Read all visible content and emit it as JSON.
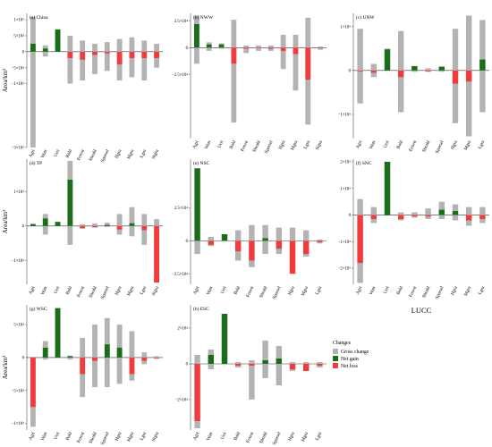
{
  "colors": {
    "gross": "#b3b3b3",
    "gain": "#1a6e1a",
    "loss": "#f03c3c",
    "axis": "#555555",
    "zero": "#333333"
  },
  "legend": {
    "title": "Changes",
    "items": [
      {
        "label": "Gross change",
        "key": "gross"
      },
      {
        "label": "Net gain",
        "key": "gain"
      },
      {
        "label": "Net loss",
        "key": "loss"
      }
    ]
  },
  "chart_data": [
    {
      "id": "a",
      "type": "bar",
      "title": "(a) China",
      "ylabel": "Area/km²",
      "xlabel": "",
      "ylim": [
        -300000,
        120000
      ],
      "yticks": [
        {
          "v": 100000,
          "t": "1×10⁵"
        },
        {
          "v": 50000,
          "t": "5×10⁴"
        },
        {
          "v": 0,
          "t": "0"
        },
        {
          "v": -50000,
          "t": "−5×10⁴"
        },
        {
          "v": -100000,
          "t": "−1×10⁵"
        },
        {
          "v": -300000,
          "t": "−3×10⁵"
        }
      ],
      "categories": [
        "Agri",
        "Watr",
        "Urri",
        "Bald",
        "Forest",
        "Shrubl",
        "Sparsel",
        "Hgra",
        "Mgra",
        "Lgra",
        "Stgra"
      ],
      "series": [
        {
          "name": "Gross change",
          "values": [
            [
              -300000,
              110000
            ],
            [
              -15000,
              20000
            ],
            [
              0,
              70000
            ],
            [
              -100000,
              50000
            ],
            [
              -90000,
              35000
            ],
            [
              -70000,
              25000
            ],
            [
              -60000,
              30000
            ],
            [
              -90000,
              40000
            ],
            [
              -80000,
              45000
            ],
            [
              -90000,
              35000
            ],
            [
              -50000,
              25000
            ]
          ]
        },
        {
          "name": "Net",
          "values": [
            25000,
            10000,
            70000,
            -20000,
            -25000,
            -10000,
            -5000,
            -40000,
            -20000,
            -20000,
            -20000
          ]
        }
      ]
    },
    {
      "id": "b",
      "type": "bar",
      "title": "(b) NWW",
      "ylabel": "",
      "xlabel": "",
      "ylim": [
        -85000,
        32000
      ],
      "yticks": [
        {
          "v": 25000,
          "t": "2.5×10⁴"
        },
        {
          "v": 0,
          "t": "0"
        },
        {
          "v": -25000,
          "t": "−2.5×10⁴"
        }
      ],
      "categories": [
        "Agri",
        "Watr",
        "Urri",
        "Bald",
        "Forest",
        "Shrubl",
        "Sparsel",
        "Hgra",
        "Mgra",
        "Lgra",
        "Stgra"
      ],
      "series": [
        {
          "name": "Gross change",
          "values": [
            [
              -15000,
              30000
            ],
            [
              -3000,
              5000
            ],
            [
              -1000,
              4000
            ],
            [
              -70000,
              26000
            ],
            [
              -5000,
              2000
            ],
            [
              -3000,
              2000
            ],
            [
              -3000,
              2000
            ],
            [
              -20000,
              12000
            ],
            [
              -40000,
              12000
            ],
            [
              -72000,
              28000
            ],
            [
              -2000,
              1000
            ]
          ]
        },
        {
          "name": "Net",
          "values": [
            22000,
            3000,
            3000,
            -15000,
            -1000,
            -500,
            -1000,
            -3000,
            -6000,
            -30000,
            -500
          ]
        }
      ]
    },
    {
      "id": "c",
      "type": "bar",
      "title": "(c) UNW",
      "ylabel": "",
      "xlabel": "",
      "ylim": [
        -155000,
        130000
      ],
      "yticks": [
        {
          "v": 100000,
          "t": "1×10⁵"
        },
        {
          "v": 0,
          "t": "0"
        },
        {
          "v": -100000,
          "t": "−1×10⁵"
        }
      ],
      "categories": [
        "Agri",
        "Watr",
        "Urri",
        "Bald",
        "Forest",
        "Shrubl",
        "Sparsel",
        "Hgra",
        "Mgra",
        "Lgra"
      ],
      "series": [
        {
          "name": "Gross change",
          "values": [
            [
              -75000,
              95000
            ],
            [
              -15000,
              15000
            ],
            [
              0,
              50000
            ],
            [
              -95000,
              90000
            ],
            [
              -3000,
              10000
            ],
            [
              -3000,
              5000
            ],
            [
              -3000,
              10000
            ],
            [
              -120000,
              95000
            ],
            [
              -150000,
              125000
            ],
            [
              -95000,
              115000
            ]
          ]
        },
        {
          "name": "Net",
          "values": [
            -2000,
            -5000,
            48000,
            -15000,
            10000,
            -2000,
            8000,
            -30000,
            -25000,
            25000
          ]
        }
      ]
    },
    {
      "id": "d",
      "type": "bar",
      "title": "(d) TP",
      "ylabel": "Area/km²",
      "xlabel": "",
      "ylim": [
        -170000,
        195000
      ],
      "yticks": [
        {
          "v": 100000,
          "t": "1×10⁵"
        },
        {
          "v": 0,
          "t": "0"
        },
        {
          "v": -100000,
          "t": "−1×10⁵"
        }
      ],
      "categories": [
        "Agri",
        "Watr",
        "Urri",
        "Bald",
        "Forest",
        "Shrubl",
        "Sparsel",
        "Hgra",
        "Mgra",
        "Lgra",
        "Stgra"
      ],
      "series": [
        {
          "name": "Gross change",
          "values": [
            [
              0,
              7000
            ],
            [
              -25000,
              35000
            ],
            [
              0,
              12000
            ],
            [
              -55000,
              190000
            ],
            [
              -8000,
              5000
            ],
            [
              -5000,
              7000
            ],
            [
              -3000,
              10000
            ],
            [
              -25000,
              35000
            ],
            [
              -30000,
              55000
            ],
            [
              -55000,
              35000
            ],
            [
              -165000,
              20000
            ]
          ]
        },
        {
          "name": "Net",
          "values": [
            5000,
            22000,
            12000,
            135000,
            -6000,
            -3000,
            3000,
            -10000,
            8000,
            -12000,
            -165000
          ]
        }
      ]
    },
    {
      "id": "e",
      "type": "bar",
      "title": "(e) NSC",
      "ylabel": "",
      "xlabel": "",
      "ylim": [
        -33000,
        62000
      ],
      "yticks": [
        {
          "v": 25000,
          "t": "2.5×10⁴"
        },
        {
          "v": 0,
          "t": "0"
        },
        {
          "v": -25000,
          "t": "−2.5×10⁴"
        }
      ],
      "categories": [
        "Agri",
        "Watr",
        "Urri",
        "Bald",
        "Forest",
        "Shrubl",
        "Sparsel",
        "Hgra",
        "Mgra",
        "Lgra"
      ],
      "series": [
        {
          "name": "Gross change",
          "values": [
            [
              -10000,
              55000
            ],
            [
              -4000,
              3000
            ],
            [
              0,
              5000
            ],
            [
              -15000,
              8000
            ],
            [
              -20000,
              12000
            ],
            [
              -10000,
              12000
            ],
            [
              -10000,
              10000
            ],
            [
              -25000,
              10000
            ],
            [
              -12000,
              8000
            ],
            [
              -2000,
              1000
            ]
          ]
        },
        {
          "name": "Net",
          "values": [
            55000,
            -3000,
            5000,
            -8000,
            -15000,
            2000,
            -6000,
            -25000,
            -10000,
            -1000
          ]
        }
      ]
    },
    {
      "id": "f",
      "type": "bar",
      "title": "(f) SNC",
      "ylabel": "",
      "xlabel": "LUCC",
      "ylim": [
        -260000,
        210000
      ],
      "yticks": [
        {
          "v": 200000,
          "t": "2×10⁵"
        },
        {
          "v": 100000,
          "t": "1×10⁵"
        },
        {
          "v": 0,
          "t": "0"
        },
        {
          "v": -100000,
          "t": "−1×10⁵"
        },
        {
          "v": -200000,
          "t": "−2×10⁵"
        }
      ],
      "categories": [
        "Agri",
        "Watr",
        "Urri",
        "Bald",
        "Forest",
        "Shrubl",
        "Sparsel",
        "Hgra",
        "Mgra",
        "Lgra"
      ],
      "series": [
        {
          "name": "Gross change",
          "values": [
            [
              -255000,
              60000
            ],
            [
              -30000,
              30000
            ],
            [
              0,
              200000
            ],
            [
              -20000,
              10000
            ],
            [
              -10000,
              10000
            ],
            [
              -15000,
              25000
            ],
            [
              -15000,
              50000
            ],
            [
              -20000,
              40000
            ],
            [
              -40000,
              30000
            ],
            [
              -30000,
              30000
            ]
          ]
        },
        {
          "name": "Net",
          "values": [
            -180000,
            -15000,
            200000,
            -15000,
            -5000,
            -5000,
            20000,
            15000,
            -20000,
            -15000
          ]
        }
      ]
    },
    {
      "id": "g",
      "type": "bar",
      "title": "(g) WSC",
      "ylabel": "Area/km²",
      "xlabel": "LUCC",
      "ylim": [
        -110000,
        80000
      ],
      "yticks": [
        {
          "v": 50000,
          "t": "5×10⁴"
        },
        {
          "v": 0,
          "t": "0"
        },
        {
          "v": -50000,
          "t": "−5×10⁴"
        },
        {
          "v": -100000,
          "t": "−1×10⁵"
        }
      ],
      "categories": [
        "Agri",
        "Watr",
        "Urri",
        "Bald",
        "Forest",
        "Shrubl",
        "Sparsel",
        "Hgra",
        "Mgra",
        "Lgra",
        "Stgra"
      ],
      "series": [
        {
          "name": "Gross change",
          "values": [
            [
              -105000,
              0
            ],
            [
              -3000,
              25000
            ],
            [
              0,
              75000
            ],
            [
              -3000,
              3000
            ],
            [
              -60000,
              30000
            ],
            [
              -45000,
              50000
            ],
            [
              -45000,
              60000
            ],
            [
              -40000,
              50000
            ],
            [
              -35000,
              40000
            ],
            [
              -10000,
              8000
            ],
            [
              -2000,
              2000
            ]
          ]
        },
        {
          "name": "Net",
          "values": [
            -75000,
            15000,
            75000,
            2000,
            -25000,
            -5000,
            20000,
            15000,
            -25000,
            -5000,
            -1000
          ]
        }
      ]
    },
    {
      "id": "h",
      "type": "bar",
      "title": "(h) ESC",
      "ylabel": "",
      "xlabel": "LUCC",
      "ylim": [
        -37000,
        33000
      ],
      "yticks": [
        {
          "v": 20000,
          "t": "2×10⁴"
        },
        {
          "v": 0,
          "t": "0"
        },
        {
          "v": -20000,
          "t": "−2×10⁴"
        }
      ],
      "categories": [
        "Agri",
        "Watr",
        "Urri",
        "Bald",
        "Forest",
        "Shrubl",
        "Sparsel",
        "Hgra",
        "Mgra",
        "Lgra"
      ],
      "series": [
        {
          "name": "Gross change",
          "values": [
            [
              -36000,
              5000
            ],
            [
              -3000,
              8000
            ],
            [
              0,
              28000
            ],
            [
              -2000,
              1000
            ],
            [
              -20000,
              2000
            ],
            [
              -8000,
              13000
            ],
            [
              -12000,
              10000
            ],
            [
              -4000,
              1000
            ],
            [
              -4000,
              1000
            ],
            [
              -2000,
              1000
            ]
          ]
        },
        {
          "name": "Net",
          "values": [
            -32000,
            5000,
            28000,
            -1000,
            -1000,
            2000,
            3000,
            -3000,
            -4000,
            -1000
          ]
        }
      ]
    }
  ]
}
